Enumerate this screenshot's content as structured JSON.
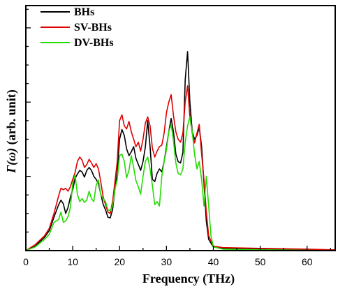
{
  "chart_data": {
    "type": "line",
    "title": "",
    "xlabel": "Frequency (THz)",
    "ylabel": "Γ(ω) (arb. unit)",
    "ylabel_parts": {
      "symbol": "Γ(ω)",
      "rest": " (arb. unit)"
    },
    "xlim": [
      0,
      66
    ],
    "ylim": [
      0,
      330
    ],
    "xticks": [
      0,
      10,
      20,
      30,
      40,
      50,
      60
    ],
    "xtick_labels": [
      "0",
      "10",
      "20",
      "30",
      "40",
      "50",
      "60"
    ],
    "y_tick_labels_visible": false,
    "grid": false,
    "legend": "top-left",
    "series": [
      {
        "name": "BHs",
        "color": "#000000",
        "points": [
          [
            0,
            0
          ],
          [
            2,
            6
          ],
          [
            4,
            18
          ],
          [
            5,
            27
          ],
          [
            6,
            45
          ],
          [
            7,
            62
          ],
          [
            7.5,
            68
          ],
          [
            8,
            63
          ],
          [
            8.5,
            50
          ],
          [
            9,
            58
          ],
          [
            9.5,
            72
          ],
          [
            10,
            82
          ],
          [
            10.5,
            97
          ],
          [
            11,
            103
          ],
          [
            11.5,
            108
          ],
          [
            12,
            106
          ],
          [
            12.5,
            99
          ],
          [
            13,
            108
          ],
          [
            13.5,
            112
          ],
          [
            14,
            108
          ],
          [
            14.5,
            100
          ],
          [
            15,
            96
          ],
          [
            15.5,
            90
          ],
          [
            16,
            76
          ],
          [
            16.5,
            62
          ],
          [
            17,
            55
          ],
          [
            17.5,
            45
          ],
          [
            18,
            44
          ],
          [
            18.5,
            55
          ],
          [
            19,
            82
          ],
          [
            19.5,
            105
          ],
          [
            20,
            150
          ],
          [
            20.5,
            163
          ],
          [
            21,
            155
          ],
          [
            21.5,
            137
          ],
          [
            22,
            128
          ],
          [
            22.5,
            133
          ],
          [
            23,
            140
          ],
          [
            23.5,
            124
          ],
          [
            24,
            116
          ],
          [
            24.5,
            108
          ],
          [
            25,
            120
          ],
          [
            25.5,
            140
          ],
          [
            26,
            175
          ],
          [
            26.5,
            140
          ],
          [
            27,
            96
          ],
          [
            27.5,
            93
          ],
          [
            28,
            104
          ],
          [
            28.5,
            110
          ],
          [
            29,
            106
          ],
          [
            29.5,
            120
          ],
          [
            30,
            140
          ],
          [
            30.5,
            160
          ],
          [
            31,
            178
          ],
          [
            31.5,
            160
          ],
          [
            32,
            130
          ],
          [
            32.5,
            120
          ],
          [
            33,
            118
          ],
          [
            33.5,
            132
          ],
          [
            34,
            230
          ],
          [
            34.5,
            268
          ],
          [
            35,
            200
          ],
          [
            35.5,
            160
          ],
          [
            36,
            150
          ],
          [
            36.5,
            155
          ],
          [
            37,
            166
          ],
          [
            37.5,
            140
          ],
          [
            38,
            90
          ],
          [
            38.5,
            40
          ],
          [
            39,
            15
          ],
          [
            40,
            5
          ],
          [
            42,
            3
          ],
          [
            50,
            2
          ],
          [
            60,
            1
          ],
          [
            66,
            0
          ]
        ]
      },
      {
        "name": "SV-BHs",
        "color": "#e00000",
        "points": [
          [
            0,
            0
          ],
          [
            2,
            8
          ],
          [
            4,
            20
          ],
          [
            5,
            30
          ],
          [
            6,
            50
          ],
          [
            7,
            74
          ],
          [
            7.5,
            84
          ],
          [
            8,
            82
          ],
          [
            8.5,
            84
          ],
          [
            9,
            80
          ],
          [
            9.5,
            86
          ],
          [
            10,
            96
          ],
          [
            10.5,
            105
          ],
          [
            11,
            120
          ],
          [
            11.5,
            126
          ],
          [
            12,
            122
          ],
          [
            12.5,
            112
          ],
          [
            13,
            116
          ],
          [
            13.5,
            123
          ],
          [
            14,
            118
          ],
          [
            14.5,
            112
          ],
          [
            15,
            117
          ],
          [
            15.5,
            110
          ],
          [
            16,
            92
          ],
          [
            16.5,
            72
          ],
          [
            17,
            62
          ],
          [
            17.5,
            52
          ],
          [
            18,
            50
          ],
          [
            18.5,
            66
          ],
          [
            19,
            92
          ],
          [
            19.5,
            120
          ],
          [
            20,
            175
          ],
          [
            20.5,
            183
          ],
          [
            21,
            168
          ],
          [
            21.5,
            164
          ],
          [
            22,
            174
          ],
          [
            22.5,
            160
          ],
          [
            23,
            150
          ],
          [
            23.5,
            140
          ],
          [
            24,
            146
          ],
          [
            24.5,
            134
          ],
          [
            25,
            150
          ],
          [
            25.5,
            172
          ],
          [
            26,
            180
          ],
          [
            26.5,
            168
          ],
          [
            27,
            138
          ],
          [
            27.5,
            126
          ],
          [
            28,
            134
          ],
          [
            28.5,
            140
          ],
          [
            29,
            142
          ],
          [
            29.5,
            158
          ],
          [
            30,
            186
          ],
          [
            30.5,
            200
          ],
          [
            31,
            210
          ],
          [
            31.5,
            182
          ],
          [
            32,
            160
          ],
          [
            32.5,
            150
          ],
          [
            33,
            146
          ],
          [
            33.5,
            158
          ],
          [
            34,
            200
          ],
          [
            34.5,
            222
          ],
          [
            35,
            180
          ],
          [
            35.5,
            158
          ],
          [
            36,
            145
          ],
          [
            36.5,
            158
          ],
          [
            37,
            170
          ],
          [
            37.5,
            130
          ],
          [
            38,
            95
          ],
          [
            38.5,
            52
          ],
          [
            39,
            20
          ],
          [
            40,
            6
          ],
          [
            42,
            4
          ],
          [
            50,
            3
          ],
          [
            60,
            2
          ],
          [
            66,
            1
          ]
        ]
      },
      {
        "name": "DV-BHs",
        "color": "#22dd00",
        "points": [
          [
            0,
            0
          ],
          [
            2,
            5
          ],
          [
            4,
            15
          ],
          [
            5,
            22
          ],
          [
            6,
            38
          ],
          [
            7,
            42
          ],
          [
            7.5,
            52
          ],
          [
            8,
            38
          ],
          [
            8.5,
            40
          ],
          [
            9,
            46
          ],
          [
            9.5,
            58
          ],
          [
            10,
            90
          ],
          [
            10.5,
            102
          ],
          [
            11,
            76
          ],
          [
            11.5,
            66
          ],
          [
            12,
            70
          ],
          [
            12.5,
            65
          ],
          [
            13,
            68
          ],
          [
            13.5,
            80
          ],
          [
            14,
            70
          ],
          [
            14.5,
            66
          ],
          [
            15,
            88
          ],
          [
            15.5,
            95
          ],
          [
            16,
            75
          ],
          [
            16.5,
            70
          ],
          [
            17,
            66
          ],
          [
            17.5,
            55
          ],
          [
            18,
            54
          ],
          [
            18.5,
            60
          ],
          [
            19,
            82
          ],
          [
            19.5,
            96
          ],
          [
            20,
            128
          ],
          [
            20.5,
            130
          ],
          [
            21,
            120
          ],
          [
            21.5,
            98
          ],
          [
            22,
            108
          ],
          [
            22.5,
            128
          ],
          [
            23,
            112
          ],
          [
            23.5,
            94
          ],
          [
            24,
            86
          ],
          [
            24.5,
            76
          ],
          [
            25,
            100
          ],
          [
            25.5,
            120
          ],
          [
            26,
            126
          ],
          [
            26.5,
            110
          ],
          [
            27,
            88
          ],
          [
            27.5,
            62
          ],
          [
            28,
            66
          ],
          [
            28.5,
            60
          ],
          [
            29,
            100
          ],
          [
            29.5,
            120
          ],
          [
            30,
            136
          ],
          [
            30.5,
            160
          ],
          [
            31,
            170
          ],
          [
            31.5,
            148
          ],
          [
            32,
            118
          ],
          [
            32.5,
            104
          ],
          [
            33,
            102
          ],
          [
            33.5,
            110
          ],
          [
            34,
            146
          ],
          [
            34.5,
            168
          ],
          [
            35,
            180
          ],
          [
            35.5,
            160
          ],
          [
            36,
            130
          ],
          [
            36.5,
            110
          ],
          [
            37,
            120
          ],
          [
            37.5,
            96
          ],
          [
            38,
            60
          ],
          [
            38.5,
            100
          ],
          [
            39,
            60
          ],
          [
            39.5,
            20
          ],
          [
            40,
            5
          ],
          [
            42,
            2
          ],
          [
            50,
            1
          ],
          [
            66,
            0
          ]
        ]
      }
    ]
  }
}
